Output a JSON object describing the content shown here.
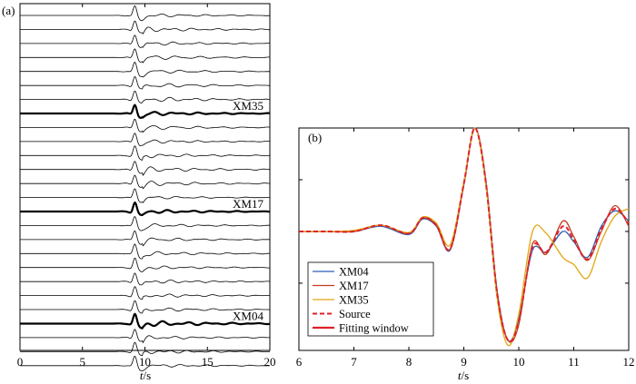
{
  "chart_data": [
    {
      "panel_label": "(a)",
      "type": "line",
      "description_series": "stacked seismograms, 26 traces",
      "xlim": [
        0,
        20
      ],
      "xticks": [
        "0",
        "5",
        "10",
        "15",
        "20"
      ],
      "xlabel_italic": "t",
      "xlabel_unit": "/s",
      "trace_count": 26,
      "highlighted_traces": [
        {
          "index": 7,
          "label": "XM35"
        },
        {
          "index": 14,
          "label": "XM17"
        },
        {
          "index": 22,
          "label": "XM04"
        }
      ],
      "colors": {
        "trace": "#000000"
      }
    },
    {
      "panel_label": "(b)",
      "type": "line",
      "xlim": [
        6,
        12
      ],
      "xticks": [
        "6",
        "7",
        "8",
        "9",
        "10",
        "11",
        "12"
      ],
      "xlabel_italic": "t",
      "xlabel_unit": "/s",
      "ylim": [
        -1.15,
        1.0
      ],
      "x": [
        6.0,
        6.5,
        7.0,
        7.5,
        8.0,
        8.25,
        8.5,
        8.75,
        9.0,
        9.2,
        9.4,
        9.6,
        9.8,
        10.0,
        10.25,
        10.5,
        10.8,
        11.0,
        11.25,
        11.5,
        11.75,
        12.0
      ],
      "series": [
        {
          "name": "XM04",
          "color": "#2f5fb3",
          "style": "solid",
          "values": [
            0.0,
            0.0,
            0.0,
            0.05,
            -0.03,
            0.12,
            0.05,
            -0.18,
            0.45,
            1.0,
            0.5,
            -0.55,
            -1.05,
            -0.85,
            -0.18,
            -0.2,
            0.0,
            -0.1,
            -0.25,
            0.05,
            0.2,
            0.1
          ]
        },
        {
          "name": "XM17",
          "color": "#c63a1c",
          "style": "solid",
          "values": [
            0.0,
            0.0,
            0.0,
            0.06,
            -0.02,
            0.13,
            0.06,
            -0.17,
            0.46,
            1.0,
            0.48,
            -0.58,
            -1.05,
            -0.9,
            -0.12,
            -0.22,
            0.1,
            -0.05,
            -0.28,
            0.0,
            0.25,
            0.05
          ]
        },
        {
          "name": "XM35",
          "color": "#e0a612",
          "style": "solid",
          "values": [
            0.0,
            0.0,
            0.01,
            0.06,
            -0.01,
            0.14,
            0.08,
            -0.13,
            0.48,
            1.0,
            0.45,
            -0.62,
            -1.1,
            -0.8,
            0.0,
            -0.02,
            -0.25,
            -0.32,
            -0.45,
            -0.1,
            0.15,
            0.22
          ]
        },
        {
          "name": "Source",
          "color": "#e0202a",
          "style": "dashed",
          "values": [
            0.0,
            0.0,
            0.0,
            0.06,
            -0.02,
            0.13,
            0.06,
            -0.17,
            0.46,
            1.0,
            0.48,
            -0.57,
            -1.05,
            -0.87,
            -0.15,
            -0.2,
            0.05,
            -0.08,
            -0.27,
            0.02,
            0.22,
            0.08
          ]
        }
      ],
      "legend": [
        {
          "name": "XM04",
          "color": "#2f5fb3",
          "style": "solid"
        },
        {
          "name": "XM17",
          "color": "#c63a1c",
          "style": "solid"
        },
        {
          "name": "XM35",
          "color": "#e0a612",
          "style": "solid"
        },
        {
          "name": "Source",
          "color": "#e0202a",
          "style": "dashed"
        },
        {
          "name": "Fitting window",
          "color": "#e0202a",
          "style": "thick"
        }
      ],
      "legend_location": "bottom-left"
    }
  ]
}
